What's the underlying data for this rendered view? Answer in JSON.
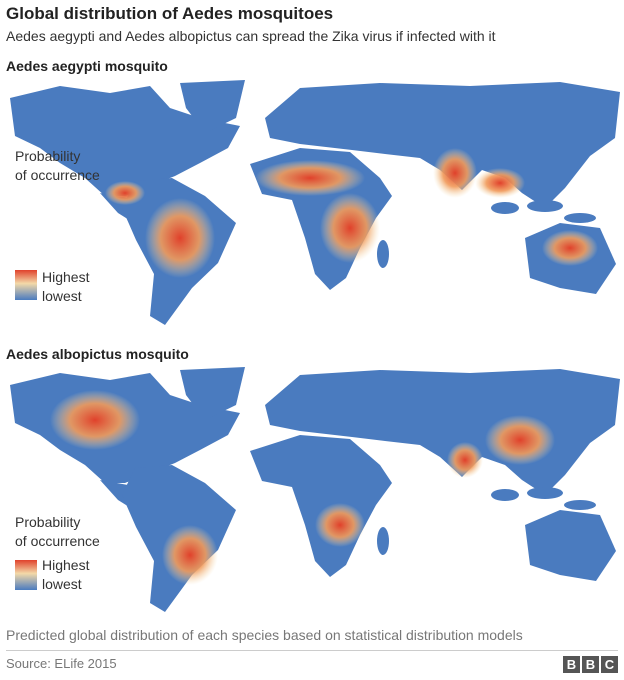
{
  "header": {
    "title": "Global distribution of Aedes mosquitoes",
    "subtitle": "Aedes aegypti and Aedes albopictus can spread the Zika virus if infected with it"
  },
  "maps": [
    {
      "heading": "Aedes aegypti mosquito",
      "legend": {
        "title_lines": [
          "Probability",
          "of occurrence"
        ],
        "high": "Highest",
        "low": "lowest"
      }
    },
    {
      "heading": "Aedes albopictus mosquito",
      "legend": {
        "title_lines": [
          "Probability",
          "of occurrence"
        ],
        "high": "Highest",
        "low": "lowest"
      }
    }
  ],
  "footer": {
    "note": "Predicted global distribution of each species based on statistical distribution models",
    "source": "Source: ELife 2015",
    "logo": [
      "B",
      "B",
      "C"
    ]
  }
}
